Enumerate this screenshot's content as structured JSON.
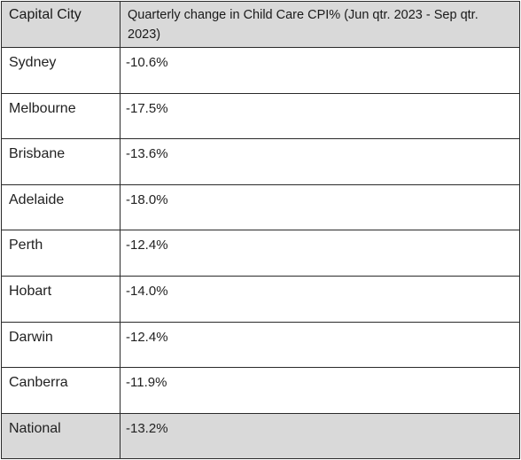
{
  "chart_data": {
    "type": "table",
    "columns": [
      "Capital City",
      "Quarterly change in Child Care CPI% (Jun qtr. 2023 - Sep qtr. 2023)"
    ],
    "rows": [
      {
        "city": "Sydney",
        "change": "-10.6%",
        "value": -10.6
      },
      {
        "city": "Melbourne",
        "change": "-17.5%",
        "value": -17.5
      },
      {
        "city": "Brisbane",
        "change": "-13.6%",
        "value": -13.6
      },
      {
        "city": "Adelaide",
        "change": "-18.0%",
        "value": -18.0
      },
      {
        "city": "Perth",
        "change": "-12.4%",
        "value": -12.4
      },
      {
        "city": "Hobart",
        "change": "-14.0%",
        "value": -14.0
      },
      {
        "city": "Darwin",
        "change": "-12.4%",
        "value": -12.4
      },
      {
        "city": "Canberra",
        "change": "-11.9%",
        "value": -11.9
      }
    ],
    "summary_row": {
      "city": "National",
      "change": "-13.2%",
      "value": -13.2
    },
    "header_fill": "#d9d9d9",
    "summary_fill": "#d9d9d9",
    "border_color": "#2a2a2a"
  }
}
